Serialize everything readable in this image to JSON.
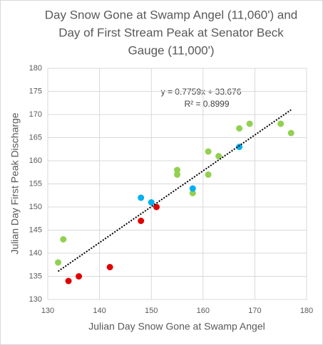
{
  "chart_data": {
    "type": "scatter",
    "title": [
      "Day Snow Gone at Swamp Angel (11,060') and",
      "Day of First Stream Peak at Senator Beck",
      "Gauge (11,000')"
    ],
    "x_label": "Julian Day Snow Gone at Swamp Angel",
    "y_label": "Julian Day First Peak Discharge",
    "xlim": [
      130,
      180
    ],
    "xticks": [
      130,
      140,
      150,
      160,
      170,
      180
    ],
    "ylim": [
      130,
      180
    ],
    "yticks": [
      130,
      135,
      140,
      145,
      150,
      155,
      160,
      165,
      170,
      175,
      180
    ],
    "grid": true,
    "series": [
      {
        "color": "#92d050",
        "x": [
          132,
          133,
          155,
          155,
          158,
          161,
          161,
          163,
          167,
          169,
          175,
          177
        ],
        "values": [
          138,
          143,
          158,
          157,
          153,
          162,
          157,
          161,
          167,
          168,
          168,
          166
        ]
      },
      {
        "color": "#00b0f0",
        "x": [
          148,
          150,
          158,
          167
        ],
        "values": [
          152,
          151,
          154,
          163
        ]
      },
      {
        "color": "#e00000",
        "x": [
          134,
          136,
          142,
          148,
          151
        ],
        "values": [
          134,
          135,
          137,
          147,
          150
        ]
      }
    ],
    "trendline": {
      "equation": "y = 0.7759x + 33.676",
      "r2": "R² = 0.8999",
      "slope": 0.7759,
      "intercept": 33.676,
      "x_range": [
        132,
        177
      ]
    }
  }
}
